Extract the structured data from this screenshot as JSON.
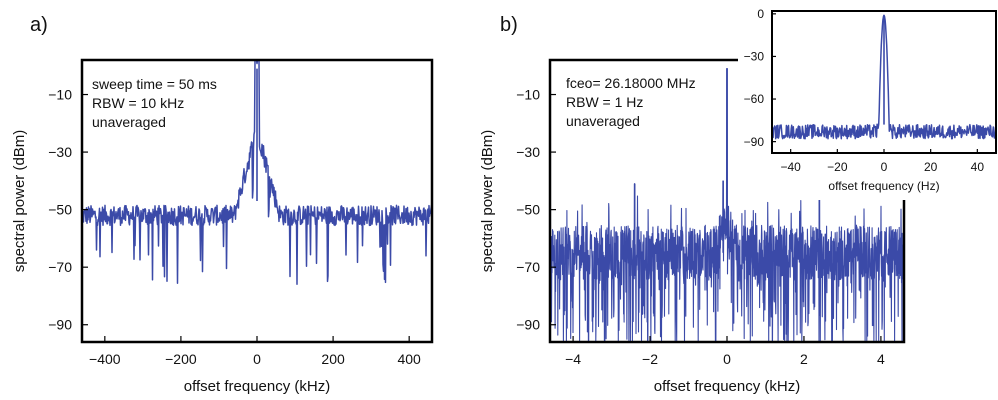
{
  "colors": {
    "trace": "#3b4aa8",
    "frame": "#000000",
    "background": "#ffffff"
  },
  "chart_data": [
    {
      "panel": "a)",
      "type": "line",
      "xlabel": "offset frequency (kHz)",
      "ylabel": "spectral power (dBm)",
      "xlim": [
        -460,
        460
      ],
      "ylim": [
        -96,
        2
      ],
      "xticks": [
        -400,
        -200,
        0,
        200,
        400
      ],
      "yticks": [
        -10,
        -30,
        -50,
        -70,
        -90
      ],
      "annotations": [
        "sweep time = 50 ms",
        "RBW = 10 kHz",
        "unaveraged"
      ],
      "series": [
        {
          "peak": {
            "x": 0,
            "y": -1
          },
          "noise_floor": -52,
          "noise_spread": 7,
          "shoulder_halfwidth": 60,
          "shoulder_height": -22
        }
      ],
      "grid": false
    },
    {
      "panel": "b)",
      "type": "line",
      "xlabel": "offset frequency (kHz)",
      "ylabel": "spectral power (dBm)",
      "xlim": [
        -4.6,
        4.6
      ],
      "ylim": [
        -96,
        2
      ],
      "xticks": [
        -4,
        -2,
        0,
        2,
        4
      ],
      "yticks": [
        -10,
        -30,
        -50,
        -70,
        -90
      ],
      "annotations": [
        "fceo= 26.18000 MHz",
        "RBW = 1 Hz",
        "unaveraged"
      ],
      "series": [
        {
          "peak": {
            "x": 0,
            "y": -1
          },
          "noise_floor": -65,
          "noise_spread": 12,
          "spurs": [
            {
              "x": -2.4,
              "y": -41
            },
            {
              "x": 2.4,
              "y": -43
            },
            {
              "x": -0.1,
              "y": -40
            }
          ]
        }
      ],
      "grid": false
    },
    {
      "panel": "inset",
      "type": "line",
      "xlabel": "offset frequency (Hz)",
      "ylabel": "",
      "xlim": [
        -48,
        48
      ],
      "ylim": [
        -98,
        2
      ],
      "xticks": [
        -40,
        -20,
        0,
        20,
        40
      ],
      "yticks": [
        0,
        -30,
        -60,
        -90
      ],
      "series": [
        {
          "peak": {
            "x": 0,
            "y": -1
          },
          "noise_floor": -83,
          "noise_spread": 5
        }
      ],
      "grid": false
    }
  ]
}
